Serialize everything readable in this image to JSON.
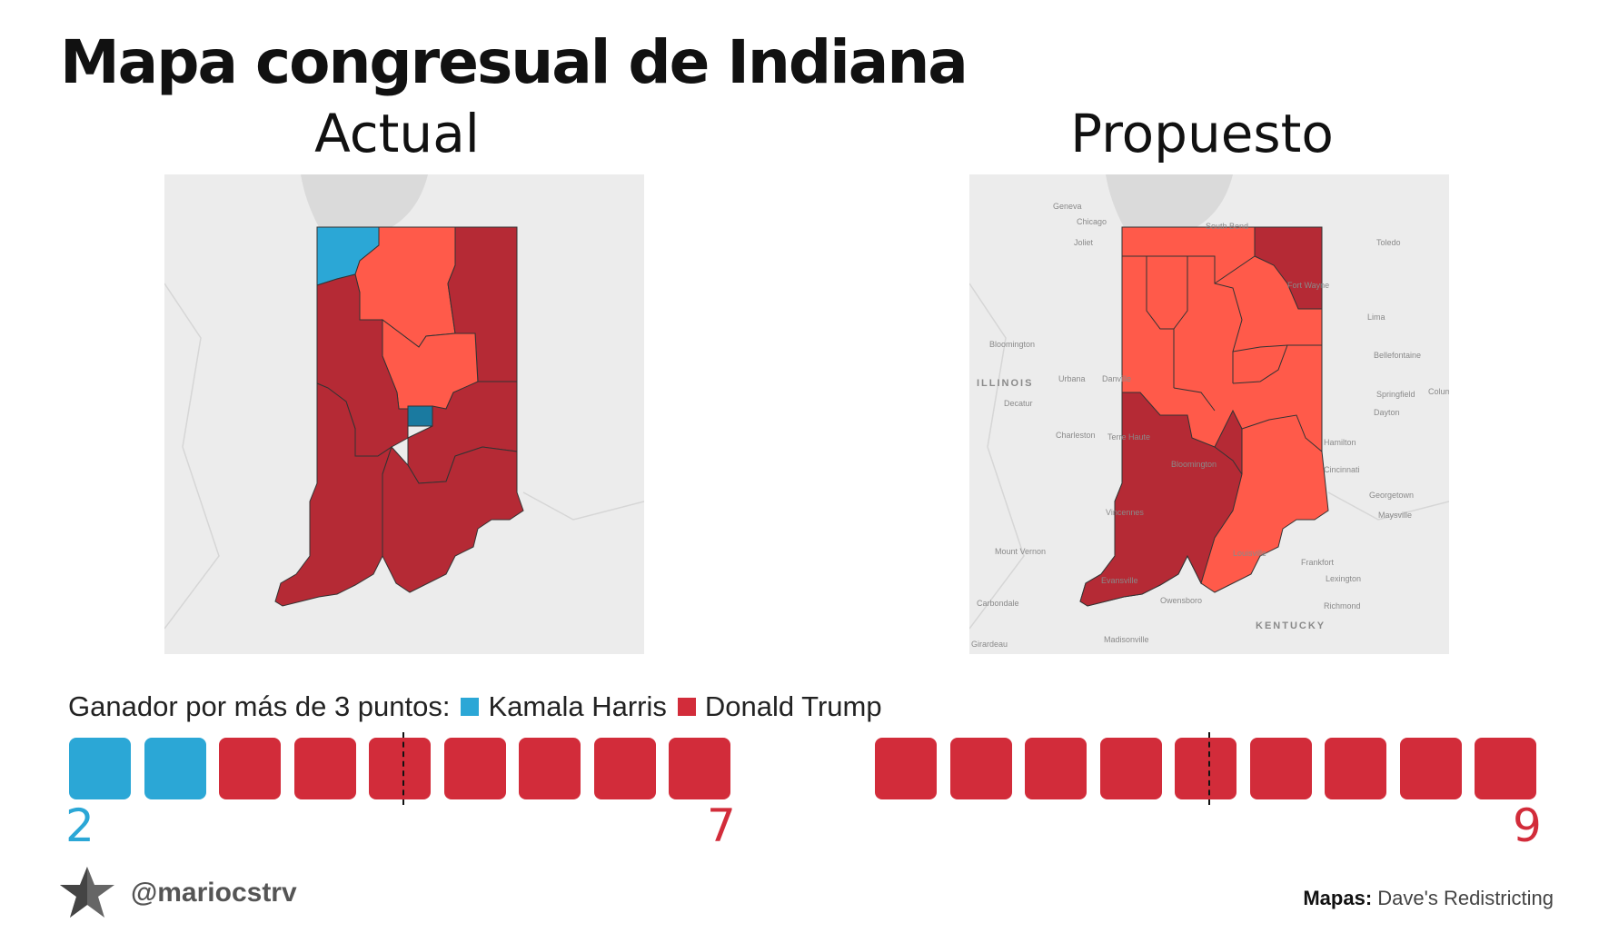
{
  "title": "Mapa congresual de Indiana",
  "maps": {
    "left": {
      "heading": "Actual",
      "labels": []
    },
    "right": {
      "heading": "Propuesto",
      "labels": [
        "Geneva",
        "Chicago",
        "South Bend",
        "Joliet",
        "Toledo",
        "Fort Wayne",
        "Lima",
        "Bloomington",
        "Bellefontaine",
        "ILLINOIS",
        "Urbana",
        "Danville",
        "Springfield",
        "Columbus",
        "Decatur",
        "Dayton",
        "Charleston",
        "Terre Haute",
        "Hamilton",
        "Bloomington",
        "Cincinnati",
        "Georgetown",
        "Vincennes",
        "Maysville",
        "Mount Vernon",
        "Louisville",
        "Frankfort",
        "Lexington",
        "Evansville",
        "Carbondale",
        "Owensboro",
        "Richmond",
        "KENTUCKY",
        "Girardeau",
        "Madisonville"
      ]
    }
  },
  "legend": {
    "prefix": "Ganador por más de 3 puntos:",
    "items": [
      {
        "label": "Kamala Harris",
        "color": "#2ba7d6"
      },
      {
        "label": "Donald Trump",
        "color": "#d22c3a"
      }
    ]
  },
  "seat_bars": [
    {
      "name": "Actual",
      "harris_seats": 2,
      "trump_seats": 7,
      "harris_label": "2",
      "trump_label": "7"
    },
    {
      "name": "Propuesto",
      "harris_seats": 0,
      "trump_seats": 9,
      "harris_label": "",
      "trump_label": "9"
    }
  ],
  "colors": {
    "harris": "#2ba7d6",
    "trump": "#d22c3a",
    "trump_light": "#ff5a4a",
    "trump_dark": "#b52a35",
    "harris_dark": "#1a7aa0"
  },
  "handle": "@marioсstrv",
  "credit": {
    "label": "Mapas:",
    "source": "Dave's Redistricting"
  }
}
